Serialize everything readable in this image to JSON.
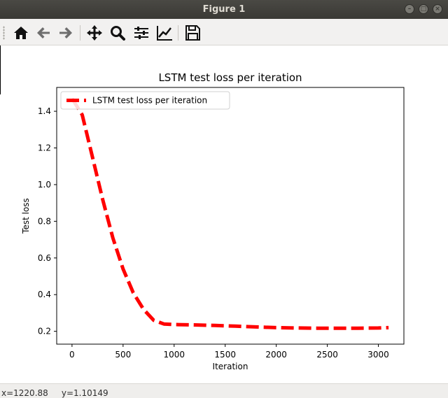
{
  "window": {
    "title": "Figure 1",
    "controls": [
      "minimize",
      "maximize",
      "close"
    ]
  },
  "toolbar": {
    "buttons": [
      {
        "name": "home",
        "icon": "home-icon",
        "tooltip": "Reset original view"
      },
      {
        "name": "back",
        "icon": "arrow-left-icon",
        "tooltip": "Back to previous view"
      },
      {
        "name": "forward",
        "icon": "arrow-right-icon",
        "tooltip": "Forward to next view"
      },
      {
        "name": "pan",
        "icon": "move-icon",
        "tooltip": "Pan axes"
      },
      {
        "name": "zoom",
        "icon": "zoom-icon",
        "tooltip": "Zoom to rectangle"
      },
      {
        "name": "subplots",
        "icon": "sliders-icon",
        "tooltip": "Configure subplots"
      },
      {
        "name": "edit-axes",
        "icon": "line-chart-icon",
        "tooltip": "Edit axis"
      },
      {
        "name": "save",
        "icon": "floppy-disk-icon",
        "tooltip": "Save the figure"
      }
    ]
  },
  "status": {
    "text": "x=1220.88     y=1.10149"
  },
  "colors": {
    "line": "#ff0000",
    "titlebar": "#3c3b37",
    "toolbar": "#f2f1f0"
  },
  "chart_data": {
    "type": "line",
    "title": "LSTM test loss per iteration",
    "xlabel": "Iteration",
    "ylabel": "Test loss",
    "xlim": [
      -150,
      3250
    ],
    "ylim": [
      0.13,
      1.53
    ],
    "xticks": [
      0,
      500,
      1000,
      1500,
      2000,
      2500,
      3000
    ],
    "xtick_labels": [
      "0",
      "500",
      "1000",
      "1500",
      "2000",
      "2500",
      "3000"
    ],
    "yticks": [
      0.2,
      0.4,
      0.6,
      0.8,
      1.0,
      1.2,
      1.4
    ],
    "ytick_labels": [
      "0.2",
      "0.4",
      "0.6",
      "0.8",
      "1.0",
      "1.2",
      "1.4"
    ],
    "grid": false,
    "legend": {
      "placement": "top-left",
      "entries": [
        "LSTM test loss per iteration"
      ]
    },
    "series": [
      {
        "name": "LSTM test loss per iteration",
        "color": "#ff0000",
        "style": "dashed",
        "x": [
          0,
          100,
          200,
          300,
          400,
          500,
          600,
          700,
          800,
          900,
          1000,
          1200,
          1400,
          1600,
          1800,
          2000,
          2200,
          2400,
          2600,
          2800,
          3000,
          3100
        ],
        "y": [
          1.47,
          1.38,
          1.15,
          0.92,
          0.71,
          0.54,
          0.41,
          0.32,
          0.26,
          0.24,
          0.237,
          0.235,
          0.232,
          0.228,
          0.224,
          0.22,
          0.218,
          0.217,
          0.217,
          0.217,
          0.218,
          0.22
        ]
      }
    ]
  }
}
